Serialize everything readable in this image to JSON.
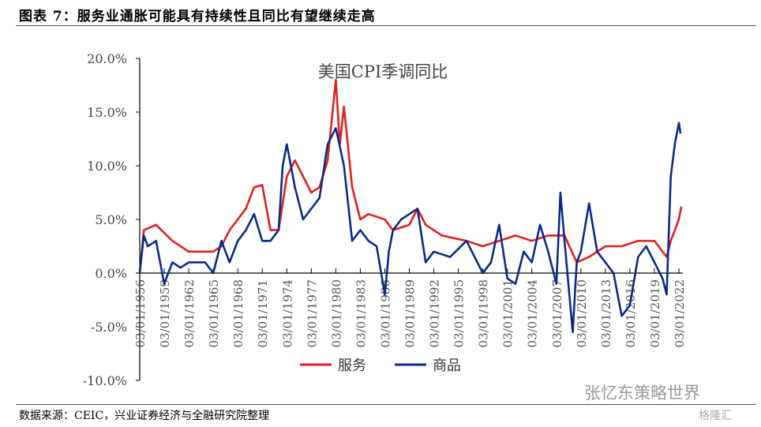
{
  "header": {
    "title": "图表 7：服务业通胀可能具有持续性且同比有望继续走高"
  },
  "footer": {
    "source": "数据来源：CEIC，兴业证券经济与全融研究院整理",
    "watermark": "张忆东策略世界",
    "watermark2": "格隆汇"
  },
  "chart_data": {
    "type": "line",
    "title": "美国CPI季调同比",
    "xlabel": "",
    "ylabel": "",
    "ylim": [
      -10,
      20
    ],
    "yticks": [
      "20.0%",
      "15.0%",
      "10.0%",
      "5.0%",
      "0.0%",
      "-5.0%",
      "-10.0%"
    ],
    "ytick_values": [
      20,
      15,
      10,
      5,
      0,
      -5,
      -10
    ],
    "xlim": [
      1956,
      2022.3
    ],
    "xticks": [
      "03/01/1956",
      "03/01/1959",
      "03/01/1962",
      "03/01/1965",
      "03/01/1968",
      "03/01/1971",
      "03/01/1974",
      "03/01/1977",
      "03/01/1980",
      "03/01/1983",
      "03/01/1986",
      "03/01/1989",
      "03/01/1992",
      "03/01/1995",
      "03/01/1998",
      "03/01/2001",
      "03/01/2004",
      "03/01/2007",
      "03/01/2010",
      "03/01/2013",
      "03/01/2016",
      "03/01/2019",
      "03/01/2022"
    ],
    "legend_position": "bottom",
    "series": [
      {
        "name": "服务",
        "color": "#e02020",
        "x": [
          1956,
          1956.5,
          1958,
          1960,
          1962,
          1965,
          1966,
          1967,
          1968,
          1969,
          1970,
          1971,
          1972,
          1973,
          1974,
          1975,
          1976,
          1977,
          1978,
          1979,
          1980,
          1980.5,
          1981,
          1982,
          1983,
          1984,
          1986,
          1987,
          1989,
          1990,
          1991,
          1993,
          1996,
          1998,
          2000,
          2002,
          2004,
          2006,
          2008,
          2009.5,
          2011,
          2013,
          2015,
          2017,
          2019,
          2020.5,
          2021,
          2022,
          2022.3
        ],
        "y": [
          0,
          4,
          4.5,
          3,
          2,
          2,
          2.5,
          4,
          5,
          6,
          8,
          8.2,
          4,
          4,
          9,
          10.5,
          9,
          7.5,
          8,
          10.5,
          18,
          12,
          15.5,
          8,
          5,
          5.5,
          5,
          4,
          4.5,
          6,
          4.5,
          3.5,
          3,
          2.5,
          3,
          3.5,
          3,
          3.5,
          3.5,
          1,
          1.5,
          2.5,
          2.5,
          3,
          3,
          1.5,
          3,
          5,
          6.2
        ]
      },
      {
        "name": "商品",
        "color": "#0a2a8a",
        "x": [
          1956,
          1956.5,
          1957,
          1958,
          1959,
          1960,
          1961,
          1962,
          1964,
          1965,
          1966,
          1967,
          1968,
          1969,
          1970,
          1971,
          1972,
          1973,
          1973.5,
          1974,
          1975,
          1976,
          1977,
          1978,
          1979,
          1980,
          1981,
          1982,
          1983,
          1984,
          1985,
          1986,
          1986.5,
          1987,
          1988,
          1990,
          1991,
          1992,
          1994,
          1996,
          1998,
          1999,
          2000,
          2001,
          2002,
          2003,
          2004,
          2005,
          2006,
          2007,
          2007.5,
          2008,
          2009,
          2009.5,
          2010,
          2011,
          2012,
          2013,
          2014,
          2015,
          2016,
          2017,
          2018,
          2019,
          2020,
          2020.5,
          2021,
          2021.5,
          2022,
          2022.2
        ],
        "y": [
          0,
          3.5,
          2.5,
          3,
          -1,
          1,
          0.5,
          1,
          1,
          0,
          3,
          1,
          3,
          4,
          5.5,
          3,
          3,
          4,
          10,
          12,
          8,
          5,
          6,
          7,
          12,
          13.5,
          10,
          3,
          4,
          3,
          2.5,
          -2,
          2,
          4,
          5,
          6,
          1,
          2,
          1.5,
          3,
          0,
          1,
          4.5,
          -0.5,
          -1,
          2,
          1,
          4.5,
          2,
          -1,
          7.5,
          3,
          -5.5,
          1,
          2,
          6.5,
          2,
          1,
          0,
          -4,
          -3,
          1.5,
          2.5,
          1,
          -0.5,
          -2,
          9,
          12,
          14,
          13
        ]
      }
    ]
  }
}
